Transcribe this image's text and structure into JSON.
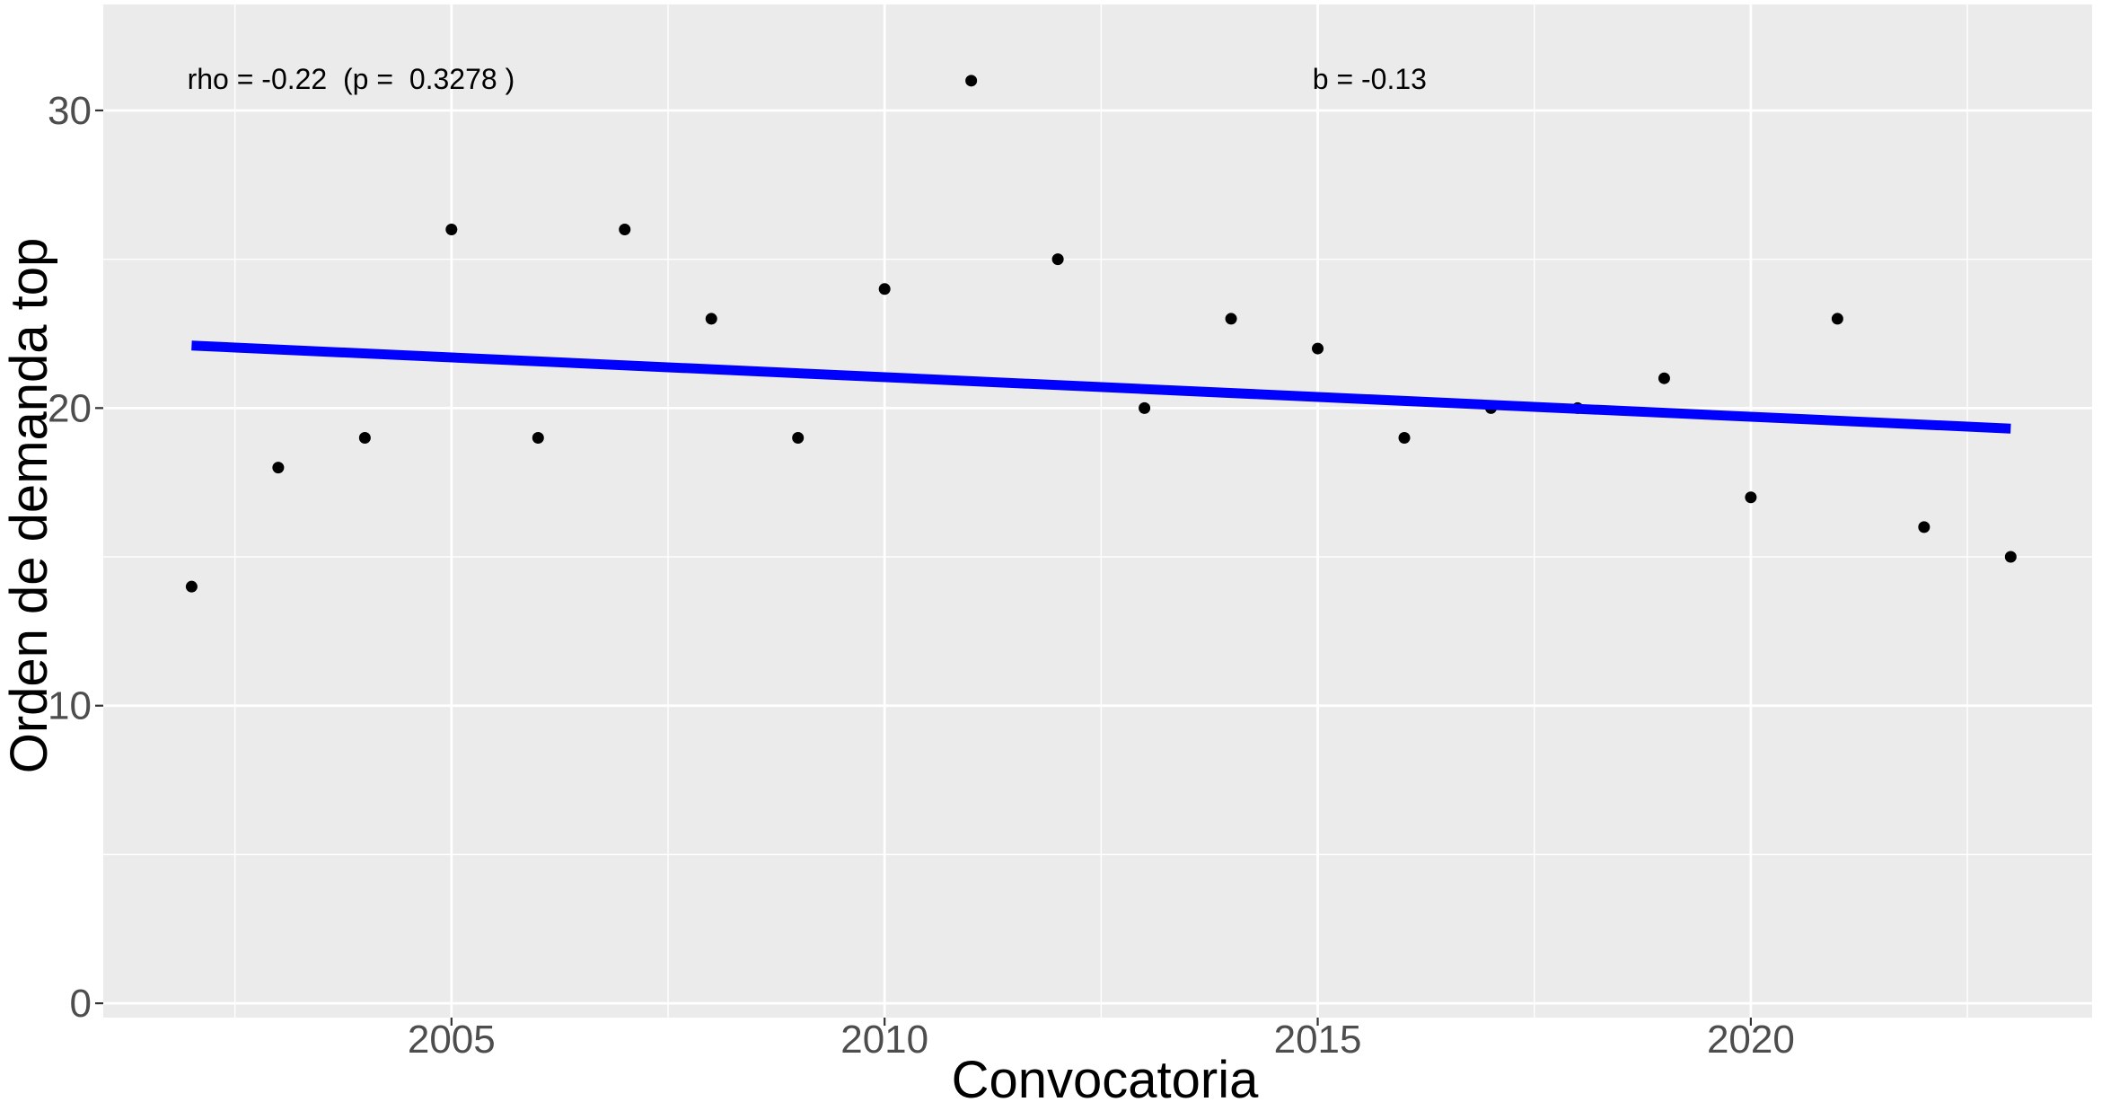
{
  "figure": {
    "background": "#FFFFFF"
  },
  "chart_data": {
    "type": "scatter",
    "title": "",
    "xlabel": "Convocatoria",
    "ylabel": "Orden de demanda top",
    "x": [
      2002,
      2003,
      2004,
      2005,
      2006,
      2007,
      2008,
      2009,
      2010,
      2011,
      2012,
      2013,
      2014,
      2015,
      2016,
      2017,
      2018,
      2019,
      2020,
      2021,
      2022,
      2023
    ],
    "y": [
      14,
      18,
      19,
      26,
      19,
      26,
      23,
      19,
      24,
      31,
      25,
      20,
      23,
      22,
      19,
      20,
      20,
      21,
      17,
      23,
      16,
      15
    ],
    "xlim": [
      2000.98,
      2023.94
    ],
    "ylim": [
      -0.48,
      33.56
    ],
    "grid": true,
    "legend_position": "none",
    "x_ticks": {
      "major": [
        2005,
        2010,
        2015,
        2020
      ],
      "minor": [
        2002.5,
        2007.5,
        2012.5,
        2017.5,
        2022.5
      ],
      "labels": [
        "2005",
        "2010",
        "2015",
        "2020"
      ]
    },
    "y_ticks": {
      "major": [
        0,
        10,
        20,
        30
      ],
      "minor": [
        5,
        15,
        25
      ],
      "labels": [
        "0",
        "10",
        "20",
        "30"
      ]
    },
    "point_style": {
      "color": "#000000",
      "radius": 6.5
    },
    "trend_line": {
      "x1": 2002,
      "y1": 22.1,
      "x2": 2023,
      "y2": 19.31,
      "color": "#0000FF",
      "width": 11,
      "slope_label": "b = -0.13"
    },
    "annotations": [
      {
        "id": "rho-annotation",
        "text": "rho = -0.22  (p =  0.3278 )",
        "x": 2001.95,
        "y": 31.05,
        "anchor": "start"
      },
      {
        "id": "b-annotation",
        "text": "b = -0.13",
        "x": 2014.94,
        "y": 31.05,
        "anchor": "start"
      }
    ],
    "colors": {
      "panel_background": "#EBEBEB",
      "grid_major": "#FFFFFF",
      "grid_minor": "#FFFFFF",
      "tick_label": "#4D4D4D",
      "tick_mark": "#333333",
      "axis_title": "#000000",
      "point": "#000000",
      "trend": "#0000FF"
    }
  }
}
